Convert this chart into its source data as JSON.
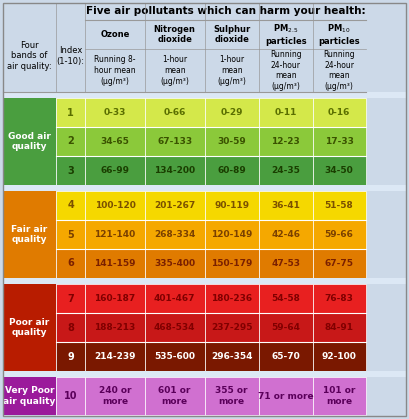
{
  "title": "Five air pollutants which can harm your health:",
  "header_bg": "#ccd9e8",
  "outer_bg": "#ccd9e8",
  "sep_bg": "#dce8f5",
  "col_headers": [
    "Ozone",
    "Nitrogen\ndioxide",
    "Sulphur\ndioxide",
    "PM2.5\nparticles",
    "PM10\nparticles"
  ],
  "col_subheaders": [
    "Running 8-\nhour mean\n(μg/m³)",
    "1-hour\nmean\n(μg/m³)",
    "1-hour\nmean\n(μg/m³)",
    "Running\n24-hour\nmean\n(μg/m³)",
    "Running\n24-hour\nmean\n(μg/m³)"
  ],
  "band_label_col": "Four\nbands of\nair quality:",
  "index_label_col": "Index\n(1-10):",
  "bands": [
    {
      "label": "Good air\nquality",
      "label_color": "#ffffff",
      "label_bg": "#4a9e3f",
      "rows": [
        {
          "index": "1",
          "values": [
            "0-33",
            "0-66",
            "0-29",
            "0-11",
            "0-16"
          ],
          "bg": "#d4e84a",
          "text": "#5a6e00"
        },
        {
          "index": "2",
          "values": [
            "34-65",
            "67-133",
            "30-59",
            "12-23",
            "17-33"
          ],
          "bg": "#8bc93a",
          "text": "#3a5200"
        },
        {
          "index": "3",
          "values": [
            "66-99",
            "134-200",
            "60-89",
            "24-35",
            "34-50"
          ],
          "bg": "#4a9e3f",
          "text": "#1a3e00"
        }
      ]
    },
    {
      "label": "Fair air\nquality",
      "label_color": "#ffffff",
      "label_bg": "#e07b00",
      "rows": [
        {
          "index": "4",
          "values": [
            "100-120",
            "201-267",
            "90-119",
            "36-41",
            "51-58"
          ],
          "bg": "#f5d800",
          "text": "#7a5000"
        },
        {
          "index": "5",
          "values": [
            "121-140",
            "268-334",
            "120-149",
            "42-46",
            "59-66"
          ],
          "bg": "#f5a800",
          "text": "#7a4000"
        },
        {
          "index": "6",
          "values": [
            "141-159",
            "335-400",
            "150-179",
            "47-53",
            "67-75"
          ],
          "bg": "#e07b00",
          "text": "#7a2000"
        }
      ]
    },
    {
      "label": "Poor air\nquality",
      "label_color": "#ffffff",
      "label_bg": "#b81c00",
      "rows": [
        {
          "index": "7",
          "values": [
            "160-187",
            "401-467",
            "180-236",
            "54-58",
            "76-83"
          ],
          "bg": "#e82020",
          "text": "#800000"
        },
        {
          "index": "8",
          "values": [
            "188-213",
            "468-534",
            "237-295",
            "59-64",
            "84-91"
          ],
          "bg": "#c81818",
          "text": "#800000"
        },
        {
          "index": "9",
          "values": [
            "214-239",
            "535-600",
            "296-354",
            "65-70",
            "92-100"
          ],
          "bg": "#7a1800",
          "text": "#ffffff"
        }
      ]
    },
    {
      "label": "Very Poor\nair quality",
      "label_color": "#ffffff",
      "label_bg": "#9b1a9b",
      "rows": [
        {
          "index": "10",
          "values": [
            "240 or\nmore",
            "601 or\nmore",
            "355 or\nmore",
            "71 or more",
            "101 or\nmore"
          ],
          "bg": "#d070d0",
          "text": "#5a005a"
        }
      ]
    }
  ]
}
